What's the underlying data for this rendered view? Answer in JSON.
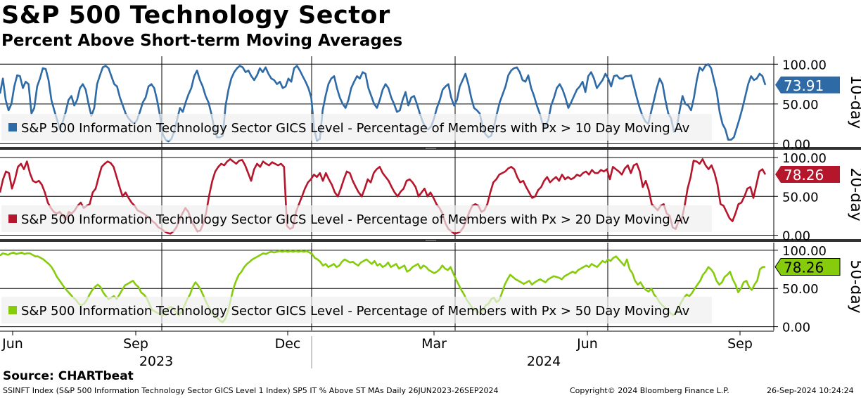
{
  "header": {
    "title": "S&P 500 Technology Sector",
    "subtitle": "Percent Above Short-term Moving Averages"
  },
  "footer": {
    "source": "Source: CHARTbeat",
    "ticker_line": "SSINFT Index (S&P 500 Information Technology Sector GICS Level 1 Index) SP5 IT % Above ST MAs  Daily 26JUN2023-26SEP2024",
    "copyright": "Copyright© 2024 Bloomberg Finance L.P.",
    "timestamp": "26-Sep-2024 10:24:24"
  },
  "colors": {
    "ma10": "#2e6aa6",
    "ma20": "#b5162c",
    "ma50": "#86cc0d",
    "grid": "#000000",
    "legend_bg": "#f0f0f0"
  },
  "chart_data": {
    "type": "line",
    "x_axis": {
      "month_labels": [
        "Jun",
        "Sep",
        "Dec",
        "Mar",
        "Jun",
        "Sep"
      ],
      "year_labels": [
        "2023",
        "2024"
      ]
    },
    "panels": [
      {
        "name": "10-day",
        "side_label": "10-day",
        "legend": "S&P 500 Information Technology Sector GICS Level - Percentage of Members with Px > 10 Day Moving Av",
        "last_value": "73.91",
        "ylim": [
          -5,
          110
        ],
        "yticks": [
          "100.00",
          "50.00",
          "0.00"
        ],
        "ytick_values": [
          100,
          50,
          0
        ],
        "color_key": "ma10",
        "values": [
          63,
          82,
          55,
          42,
          50,
          72,
          86,
          85,
          70,
          78,
          75,
          38,
          45,
          72,
          82,
          95,
          94,
          80,
          55,
          42,
          30,
          18,
          28,
          40,
          55,
          60,
          48,
          55,
          70,
          75,
          68,
          50,
          35,
          45,
          75,
          86,
          96,
          98,
          95,
          85,
          75,
          72,
          58,
          48,
          38,
          32,
          28,
          25,
          30,
          40,
          52,
          58,
          72,
          75,
          70,
          55,
          36,
          12,
          5,
          3,
          6,
          15,
          30,
          45,
          40,
          52,
          62,
          70,
          85,
          92,
          80,
          72,
          60,
          52,
          38,
          20,
          8,
          8,
          10,
          48,
          68,
          82,
          90,
          95,
          98,
          96,
          90,
          92,
          85,
          80,
          86,
          95,
          90,
          96,
          88,
          82,
          80,
          75,
          78,
          70,
          72,
          82,
          78,
          95,
          98,
          92,
          85,
          78,
          70,
          58,
          18,
          4,
          6,
          42,
          60,
          75,
          82,
          85,
          70,
          58,
          50,
          45,
          55,
          70,
          78,
          85,
          82,
          90,
          88,
          70,
          60,
          50,
          45,
          55,
          68,
          75,
          70,
          58,
          50,
          40,
          42,
          55,
          65,
          48,
          58,
          60,
          50,
          38,
          28,
          20,
          18,
          22,
          32,
          45,
          55,
          68,
          72,
          75,
          58,
          48,
          55,
          72,
          80,
          88,
          75,
          58,
          45,
          42,
          38,
          22,
          12,
          8,
          10,
          22,
          38,
          52,
          62,
          72,
          86,
          92,
          95,
          96,
          90,
          80,
          78,
          86,
          70,
          60,
          48,
          38,
          25,
          22,
          30,
          48,
          58,
          70,
          75,
          68,
          58,
          45,
          52,
          60,
          68,
          72,
          78,
          65,
          85,
          90,
          82,
          70,
          75,
          80,
          88,
          82,
          72,
          85,
          86,
          82,
          82,
          85,
          85,
          86,
          72,
          58,
          45,
          35,
          28,
          25,
          40,
          55,
          70,
          82,
          75,
          55,
          38,
          32,
          15,
          20,
          42,
          60,
          50,
          48,
          42,
          58,
          80,
          96,
          92,
          98,
          100,
          95,
          80,
          65,
          40,
          25,
          18,
          5,
          5,
          8,
          20,
          32,
          45,
          60,
          75,
          85,
          80,
          82,
          88,
          85,
          73.91
        ]
      },
      {
        "name": "20-day",
        "side_label": "20-day",
        "legend": "S&P 500 Information Technology Sector GICS Level - Percentage of Members with Px > 20 Day Moving Av",
        "last_value": "78.26",
        "ylim": [
          -5,
          110
        ],
        "yticks": [
          "100.00",
          "50.00",
          "0.00"
        ],
        "ytick_values": [
          100,
          50,
          0
        ],
        "color_key": "ma20",
        "values": [
          55,
          72,
          82,
          80,
          60,
          72,
          88,
          92,
          85,
          95,
          80,
          70,
          68,
          70,
          65,
          55,
          42,
          35,
          30,
          28,
          30,
          25,
          20,
          30,
          28,
          32,
          38,
          42,
          35,
          38,
          40,
          55,
          60,
          75,
          88,
          92,
          95,
          93,
          88,
          75,
          62,
          50,
          55,
          48,
          42,
          38,
          32,
          30,
          28,
          25,
          22,
          18,
          15,
          10,
          8,
          5,
          3,
          2,
          5,
          10,
          20,
          28,
          35,
          30,
          18,
          12,
          5,
          6,
          15,
          30,
          52,
          70,
          82,
          88,
          92,
          90,
          95,
          98,
          95,
          92,
          96,
          97,
          90,
          80,
          70,
          85,
          92,
          88,
          95,
          92,
          90,
          94,
          92,
          90,
          92,
          88,
          12,
          8,
          10,
          30,
          40,
          50,
          60,
          68,
          72,
          78,
          75,
          80,
          70,
          80,
          72,
          65,
          55,
          50,
          60,
          72,
          82,
          80,
          70,
          62,
          55,
          50,
          60,
          72,
          68,
          80,
          85,
          88,
          80,
          75,
          70,
          62,
          55,
          50,
          56,
          60,
          70,
          72,
          68,
          62,
          50,
          55,
          60,
          50,
          55,
          48,
          40,
          35,
          28,
          15,
          8,
          5,
          2,
          3,
          5,
          10,
          20,
          30,
          38,
          40,
          38,
          30,
          32,
          40,
          55,
          68,
          72,
          78,
          80,
          82,
          86,
          88,
          85,
          75,
          68,
          70,
          62,
          55,
          48,
          50,
          58,
          62,
          70,
          75,
          68,
          72,
          75,
          70,
          78,
          72,
          75,
          72,
          74,
          78,
          76,
          80,
          82,
          78,
          84,
          80,
          80,
          84,
          82,
          85,
          72,
          88,
          85,
          82,
          78,
          86,
          90,
          80,
          90,
          92,
          82,
          62,
          70,
          58,
          40,
          36,
          32,
          38,
          40,
          28,
          25,
          10,
          8,
          18,
          20,
          38,
          60,
          75,
          96,
          95,
          92,
          98,
          90,
          85,
          90,
          80,
          65,
          40,
          38,
          30,
          22,
          18,
          28,
          40,
          42,
          50,
          60,
          62,
          48,
          65,
          82,
          85,
          78.26
        ]
      },
      {
        "name": "50-day",
        "side_label": "50-day",
        "legend": "S&P 500 Information Technology Sector GICS Level - Percentage of Members with Px > 50 Day Moving Av",
        "last_value": "78.26",
        "ylim": [
          -5,
          110
        ],
        "yticks": [
          "100.00",
          "50.00",
          "0.00"
        ],
        "ytick_values": [
          100,
          50,
          0
        ],
        "color_key": "ma50",
        "values": [
          93,
          96,
          95,
          94,
          96,
          97,
          95,
          96,
          97,
          95,
          96,
          96,
          94,
          92,
          92,
          90,
          88,
          85,
          82,
          78,
          72,
          65,
          60,
          55,
          50,
          46,
          42,
          38,
          35,
          30,
          28,
          30,
          35,
          42,
          48,
          52,
          55,
          52,
          45,
          40,
          36,
          38,
          40,
          36,
          42,
          48,
          54,
          56,
          58,
          60,
          55,
          52,
          45,
          42,
          38,
          30,
          22,
          20,
          18,
          16,
          15,
          20,
          24,
          26,
          24,
          18,
          15,
          20,
          28,
          36,
          42,
          52,
          58,
          54,
          48,
          40,
          32,
          25,
          18,
          15,
          12,
          8,
          6,
          10,
          20,
          35,
          50,
          60,
          68,
          72,
          78,
          82,
          85,
          88,
          90,
          92,
          94,
          96,
          95,
          97,
          98,
          97,
          98,
          99,
          98,
          99,
          98,
          99,
          98,
          99,
          98,
          99,
          98,
          99,
          97,
          95,
          90,
          88,
          85,
          80,
          82,
          78,
          80,
          82,
          78,
          80,
          85,
          88,
          86,
          84,
          85,
          82,
          80,
          84,
          86,
          88,
          85,
          82,
          86,
          80,
          82,
          78,
          80,
          84,
          78,
          80,
          82,
          76,
          78,
          80,
          72,
          74,
          78,
          80,
          82,
          76,
          80,
          78,
          74,
          72,
          70,
          72,
          75,
          80,
          76,
          74,
          78,
          70,
          62,
          55,
          48,
          42,
          35,
          30,
          25,
          22,
          20,
          18,
          22,
          28,
          30,
          36,
          38,
          32,
          35,
          45,
          55,
          62,
          68,
          65,
          62,
          60,
          58,
          56,
          58,
          60,
          55,
          58,
          60,
          62,
          60,
          58,
          62,
          64,
          66,
          65,
          64,
          62,
          66,
          68,
          70,
          72,
          70,
          74,
          76,
          78,
          80,
          78,
          82,
          80,
          78,
          82,
          86,
          84,
          88,
          86,
          90,
          92,
          88,
          84,
          80,
          88,
          75,
          70,
          60,
          55,
          58,
          52,
          48,
          46,
          50,
          42,
          38,
          32,
          28,
          25,
          22,
          18,
          15,
          18,
          25,
          32,
          38,
          42,
          40,
          44,
          50,
          55,
          60,
          68,
          72,
          78,
          75,
          70,
          60,
          55,
          58,
          65,
          68,
          72,
          62,
          55,
          45,
          50,
          58,
          60,
          52,
          48,
          55,
          60,
          75,
          78,
          78.26
        ]
      }
    ]
  }
}
